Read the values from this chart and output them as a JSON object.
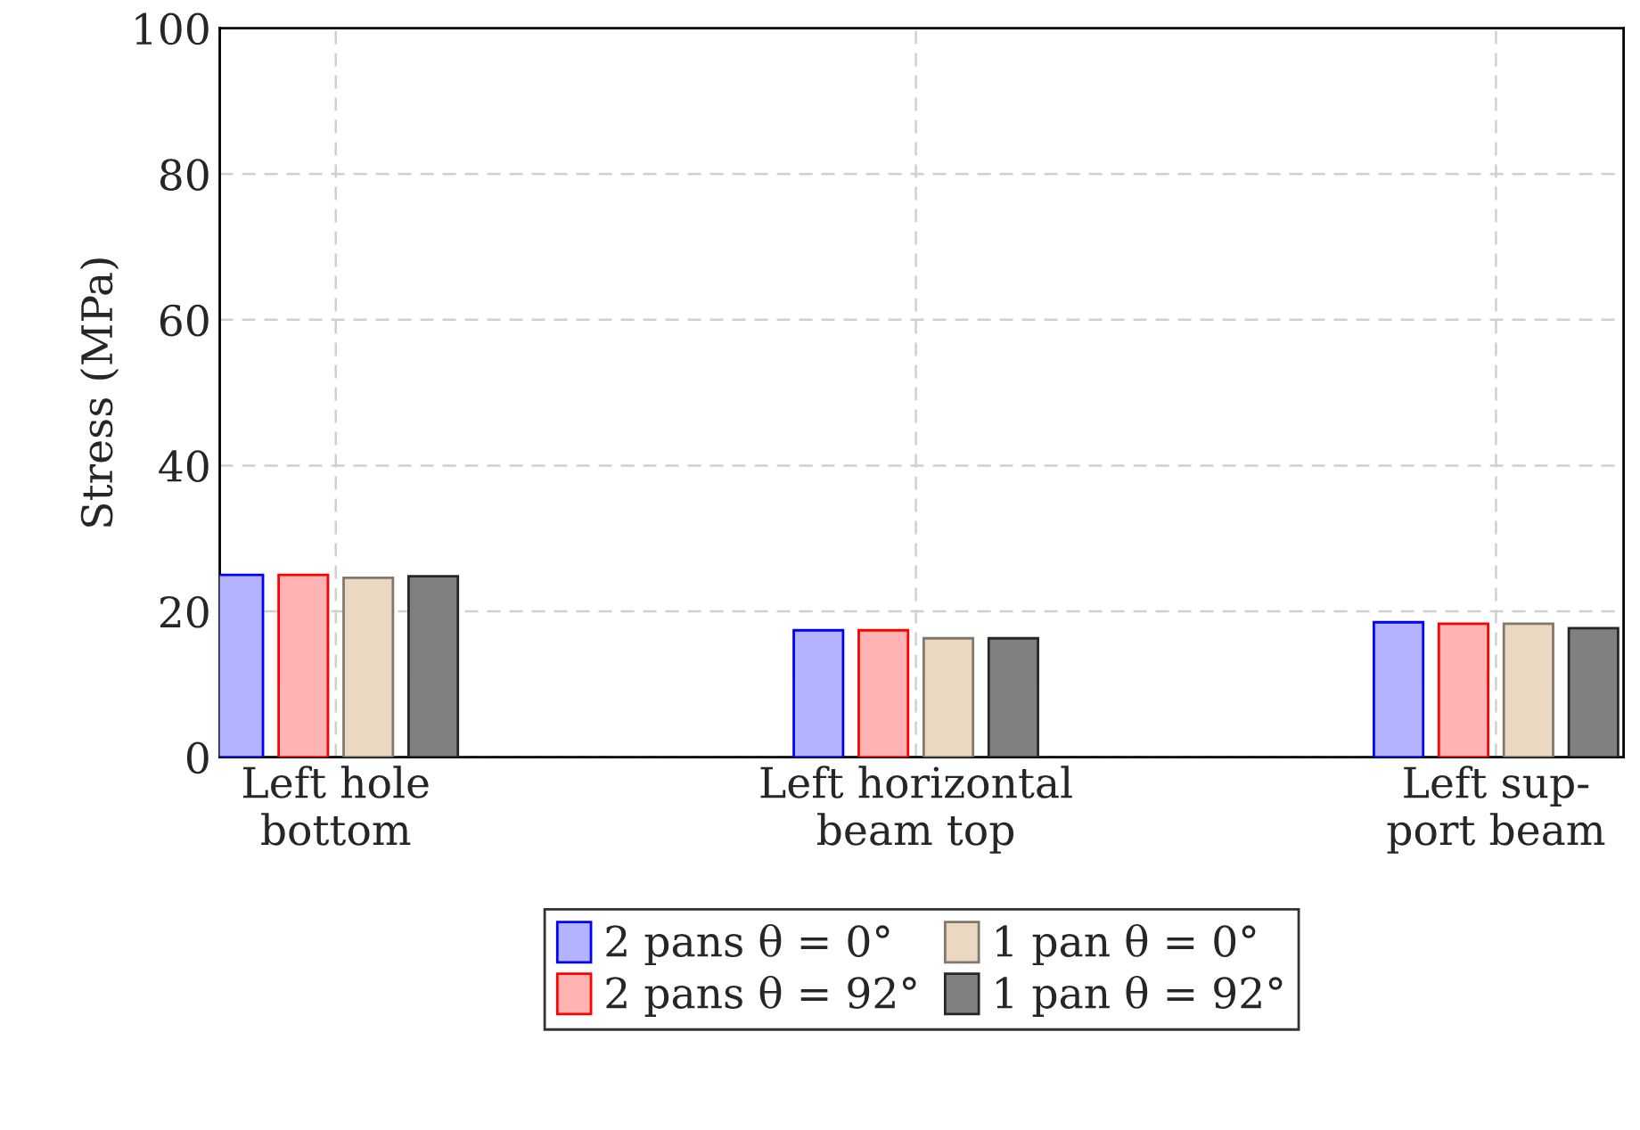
{
  "chart_data": {
    "type": "bar",
    "ylabel": "Stress (MPa)",
    "categories": [
      "Left hole\nbottom",
      "Left horizontal\nbeam top",
      "Left sup-\nport beam"
    ],
    "series": [
      {
        "name": "2 pans θ = 0°",
        "color": "#b3b3ff",
        "values": [
          25.0,
          17.4,
          18.5
        ]
      },
      {
        "name": "2 pans θ = 92°",
        "color": "#ffb3b3",
        "values": [
          25.0,
          17.4,
          18.3
        ]
      },
      {
        "name": "1 pan θ = 0°",
        "color": "#ead8c3",
        "values": [
          24.6,
          16.3,
          18.3
        ]
      },
      {
        "name": "1 pan θ = 92°",
        "color": "#808080",
        "values": [
          24.8,
          16.3,
          17.7
        ]
      }
    ],
    "ylim": [
      0,
      100
    ],
    "yticks": [
      0,
      20,
      40,
      60,
      80,
      100
    ],
    "grid": true,
    "legend": "bottom"
  }
}
